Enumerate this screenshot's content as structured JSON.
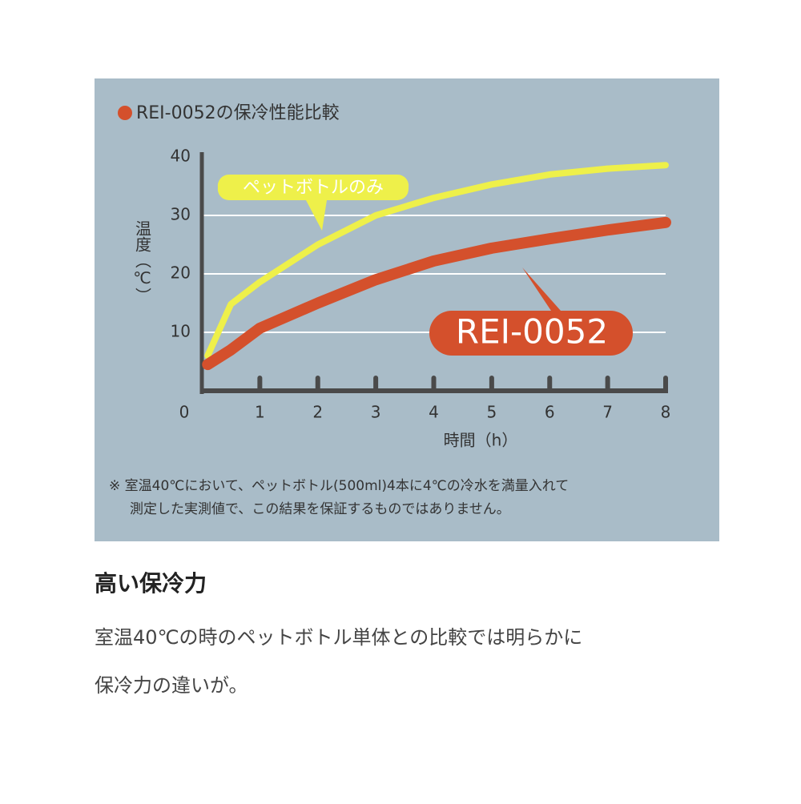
{
  "chart_data": {
    "type": "line",
    "title": "REI-0052の保冷性能比較",
    "x_label": "時間（h）",
    "y_label": "温度（℃）",
    "x": [
      0.1,
      0.5,
      1,
      2,
      3,
      4,
      5,
      6,
      7,
      8
    ],
    "series": [
      {
        "name": "ペットボトルのみ",
        "color": "#eef04a",
        "values": [
          6,
          14.8,
          18.6,
          25,
          30,
          33,
          35.3,
          37,
          38,
          38.6
        ]
      },
      {
        "name": "REI-0052",
        "color": "#d4502c",
        "values": [
          4.5,
          7,
          10.7,
          15,
          19,
          22.2,
          24.4,
          26,
          27.5,
          28.8
        ]
      }
    ],
    "xlim": [
      0,
      8
    ],
    "ylim": [
      0,
      40
    ],
    "xticks": [
      0,
      1,
      2,
      3,
      4,
      5,
      6,
      7,
      8
    ],
    "yticks": [
      10,
      20,
      30,
      40
    ],
    "grid": true,
    "note": [
      "※ 室温40℃において、ペットボトル(500ml)4本に4℃の冷水を満量入れて",
      "測定した実測値で、この結果を保証するものではありません。"
    ]
  },
  "heading": "高い保冷力",
  "body": [
    "室温40℃の時のペットボトル単体との比較では明らかに",
    "保冷力の違いが。"
  ]
}
